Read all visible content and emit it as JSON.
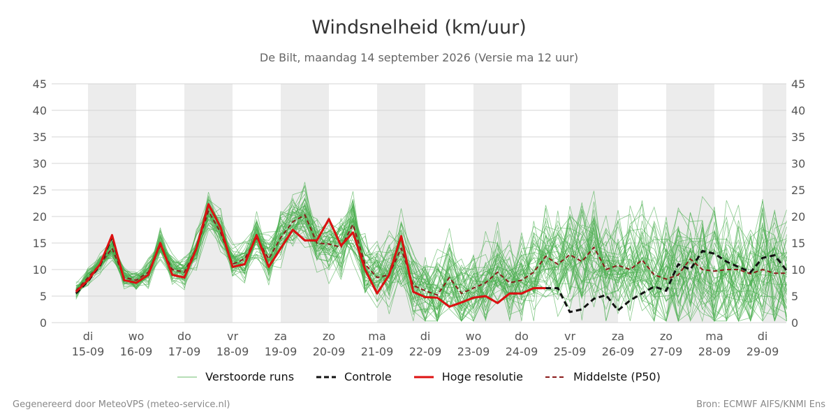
{
  "chart_data": {
    "type": "line",
    "title": "Windsnelheid (km/uur)",
    "subtitle": "De Bilt, maandag 14 september 2026 (Versie ma 12 uur)",
    "ylim": [
      0,
      45
    ],
    "yticks": [
      0,
      5,
      10,
      15,
      20,
      25,
      30,
      35,
      40,
      45
    ],
    "days": [
      {
        "day": "di",
        "date": "15-09"
      },
      {
        "day": "wo",
        "date": "16-09"
      },
      {
        "day": "do",
        "date": "17-09"
      },
      {
        "day": "vr",
        "date": "18-09"
      },
      {
        "day": "za",
        "date": "19-09"
      },
      {
        "day": "zo",
        "date": "20-09"
      },
      {
        "day": "ma",
        "date": "21-09"
      },
      {
        "day": "di",
        "date": "22-09"
      },
      {
        "day": "wo",
        "date": "23-09"
      },
      {
        "day": "do",
        "date": "24-09"
      },
      {
        "day": "vr",
        "date": "25-09"
      },
      {
        "day": "za",
        "date": "26-09"
      },
      {
        "day": "zo",
        "date": "27-09"
      },
      {
        "day": "ma",
        "date": "28-09"
      },
      {
        "day": "di",
        "date": "29-09"
      }
    ],
    "x_unit": "days since 15-09 00:00",
    "grid": true,
    "legend_position": "bottom",
    "series": [
      {
        "name": "Hoge resolutie",
        "color": "#dd1111",
        "style": "solid",
        "x": [
          -0.25,
          0,
          0.25,
          0.5,
          0.75,
          1,
          1.25,
          1.5,
          1.75,
          2,
          2.25,
          2.5,
          2.75,
          3,
          3.25,
          3.5,
          3.75,
          4,
          4.25,
          4.5,
          4.75,
          5,
          5.25,
          5.5,
          5.75,
          6,
          6.25,
          6.5,
          6.75,
          7,
          7.25,
          7.5,
          7.75,
          8,
          8.25,
          8.5,
          8.75,
          9,
          9.25,
          9.5,
          9.75,
          10
        ],
        "values": [
          5.8,
          8,
          11,
          16.5,
          8,
          7.5,
          9,
          15,
          9,
          8.5,
          14,
          22.3,
          18,
          10.5,
          11,
          16.5,
          10.5,
          14,
          17.5,
          15.5,
          15.5,
          19.5,
          14.5,
          17,
          10,
          5.5,
          9,
          16.3,
          5.8,
          4.8,
          4.7,
          3,
          3.8,
          4.7,
          5,
          3.7,
          5.5,
          5.5,
          6.5,
          6.5,
          null,
          null
        ]
      },
      {
        "name": "Controle",
        "color": "#111111",
        "style": "dashed",
        "x": [
          -0.25,
          0,
          0.25,
          0.5,
          0.75,
          1,
          1.25,
          1.5,
          1.75,
          2,
          2.25,
          2.5,
          2.75,
          3,
          3.25,
          3.5,
          3.75,
          4,
          4.25,
          4.5,
          4.75,
          5,
          5.25,
          5.5,
          5.75,
          6,
          6.25,
          6.5,
          6.75,
          7,
          7.25,
          7.5,
          7.75,
          8,
          8.25,
          8.5,
          8.75,
          9,
          9.25,
          9.5,
          9.75,
          10,
          10.25,
          10.5,
          10.75,
          11,
          11.25,
          11.5,
          11.75,
          12,
          12.25,
          12.5,
          12.75,
          13,
          13.25,
          13.5,
          13.75,
          14,
          14.25,
          14.5
        ],
        "values": [
          5.5,
          7.8,
          10.8,
          16.2,
          8,
          7.5,
          9,
          15,
          9,
          8.5,
          14,
          22.3,
          18,
          10.5,
          11,
          16.5,
          10.5,
          14,
          17.5,
          15.5,
          15.5,
          19.5,
          14.5,
          17,
          10,
          5.5,
          9,
          16.3,
          5.8,
          4.8,
          4.7,
          3,
          3.8,
          4.7,
          5,
          3.7,
          5.5,
          5.5,
          6.5,
          6.5,
          6.5,
          2,
          2.5,
          4.5,
          5.2,
          2.3,
          4.2,
          5.5,
          6.8,
          6,
          11,
          10,
          13.5,
          13,
          11.5,
          10.5,
          9.5,
          12.2,
          12.7,
          9.8
        ]
      },
      {
        "name": "Middelste (P50)",
        "color": "#8b1a1a",
        "style": "dashed",
        "x": [
          -0.25,
          0,
          0.25,
          0.5,
          0.75,
          1,
          1.25,
          1.5,
          1.75,
          2,
          2.25,
          2.5,
          2.75,
          3,
          3.25,
          3.5,
          3.75,
          4,
          4.25,
          4.5,
          4.75,
          5,
          5.25,
          5.5,
          5.75,
          6,
          6.25,
          6.5,
          6.75,
          7,
          7.25,
          7.5,
          7.75,
          8,
          8.25,
          8.5,
          8.75,
          9,
          9.25,
          9.5,
          9.75,
          10,
          10.25,
          10.5,
          10.75,
          11,
          11.25,
          11.5,
          11.75,
          12,
          12.25,
          12.5,
          12.75,
          13,
          13.25,
          13.5,
          13.75,
          14,
          14.25,
          14.5
        ],
        "values": [
          6,
          8.5,
          11,
          14,
          8.5,
          8,
          9.5,
          14.5,
          10,
          9.5,
          14,
          21,
          17,
          11,
          12,
          16,
          12,
          16,
          19,
          20.3,
          15,
          14.8,
          14.2,
          18.5,
          11,
          8.5,
          9,
          14,
          7,
          6,
          5.2,
          8.5,
          5.5,
          6.5,
          7.5,
          9.5,
          7.5,
          8,
          9.5,
          12.5,
          11,
          12.8,
          11.5,
          14.2,
          10,
          10.8,
          10,
          11.8,
          9,
          8.2,
          9,
          12,
          10,
          9.7,
          10,
          10,
          9.2,
          10,
          9.3,
          9.3
        ]
      }
    ],
    "legend": [
      {
        "label": "Verstoorde runs",
        "color": "#6cbd6c",
        "style": "thin"
      },
      {
        "label": "Controle",
        "color": "#111111",
        "style": "dashed"
      },
      {
        "label": "Hoge resolutie",
        "color": "#dd1111",
        "style": "solid"
      },
      {
        "label": "Middelste (P50)",
        "color": "#8b1a1a",
        "style": "dashed"
      }
    ]
  },
  "footer": {
    "left": "Gegenereerd door MeteoVPS (meteo-service.nl)",
    "right": "Bron: ECMWF AIFS/KNMI Ens"
  }
}
